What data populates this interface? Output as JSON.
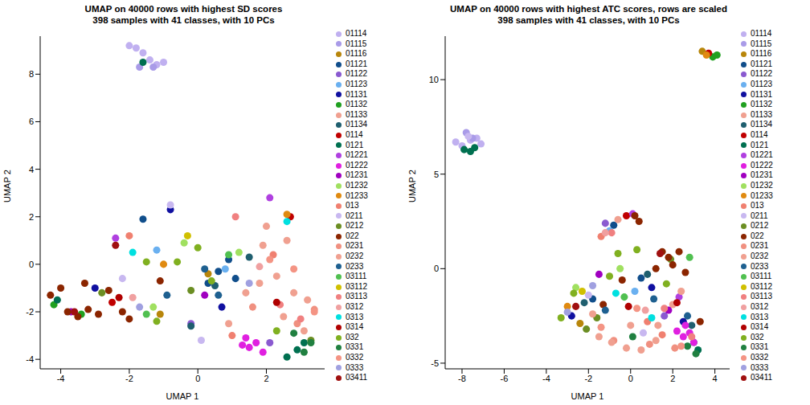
{
  "chart_data": [
    {
      "type": "scatter",
      "title": "UMAP on 40000 rows with highest SD scores",
      "subtitle": "398 samples with 41 classes, with 10 PCs",
      "x_label": "UMAP 1",
      "y_label": "UMAP 2",
      "xlim": [
        -4.6,
        3.7
      ],
      "ylim": [
        -4.4,
        9.6
      ],
      "xticks": [
        -4,
        -2,
        0,
        2
      ],
      "yticks": [
        -4,
        -2,
        0,
        2,
        4,
        6,
        8
      ],
      "legend": "right",
      "marker": "circle",
      "series": [
        {
          "name": "01114",
          "color": "#c0b0f0",
          "x": [
            -2.0,
            -1.8,
            -1.6,
            -1.4,
            -1.2,
            -1.0
          ],
          "y": [
            9.2,
            9.1,
            8.9,
            8.6,
            8.4,
            8.5
          ]
        },
        {
          "name": "01115",
          "color": "#a99be8",
          "x": [
            -1.7,
            -1.3
          ],
          "y": [
            8.3,
            8.3
          ]
        },
        {
          "name": "01116",
          "color": "#b8860b",
          "x": [
            0.3,
            -1.1
          ],
          "y": [
            -0.4,
            -2.1
          ]
        },
        {
          "name": "01121",
          "color": "#104e8b",
          "x": [
            0.6,
            0.9,
            1.1,
            0.3,
            -1.6
          ],
          "y": [
            -0.3,
            0.2,
            -0.6,
            -0.8,
            1.9
          ]
        },
        {
          "name": "01122",
          "color": "#8a5ad0",
          "x": [
            -0.2,
            2.1
          ],
          "y": [
            -2.5,
            -3.3
          ]
        },
        {
          "name": "01123",
          "color": "#6ab0f0",
          "x": [
            0.8,
            -1.2
          ],
          "y": [
            -0.2,
            0.6
          ]
        },
        {
          "name": "01131",
          "color": "#1010a0",
          "x": [
            -3.0,
            -0.8,
            0.7
          ],
          "y": [
            -1.0,
            2.3,
            -1.8
          ]
        },
        {
          "name": "01132",
          "color": "#20a020",
          "x": [
            -4.2,
            -3.4
          ],
          "y": [
            -1.7,
            -2.1
          ]
        },
        {
          "name": "01133",
          "color": "#f0a090",
          "x": [
            1.8,
            2.5,
            3.2
          ],
          "y": [
            -0.8,
            -2.2,
            -1.5
          ]
        },
        {
          "name": "01134",
          "color": "#1f5f6f",
          "x": [
            0.5,
            1.5,
            -0.2
          ],
          "y": [
            -0.9,
            0.3,
            -2.6
          ]
        },
        {
          "name": "0114",
          "color": "#c00000",
          "x": [
            2.7,
            -2.5
          ],
          "y": [
            2.0,
            -1.6
          ]
        },
        {
          "name": "0121",
          "color": "#007050",
          "x": [
            -1.6,
            2.6,
            2.9,
            3.1,
            -4.1
          ],
          "y": [
            8.5,
            -3.9,
            -3.6,
            -3.3,
            -1.5
          ]
        },
        {
          "name": "01221",
          "color": "#b040e0",
          "x": [
            -2.4,
            2.1
          ],
          "y": [
            1.1,
            2.8
          ]
        },
        {
          "name": "01222",
          "color": "#e020e0",
          "x": [
            1.3,
            1.5,
            1.7,
            1.9,
            1.4
          ],
          "y": [
            -3.4,
            -3.5,
            -3.3,
            -3.7,
            -3.1
          ]
        },
        {
          "name": "01231",
          "color": "#a000c0",
          "x": [
            -3.7,
            0.2
          ],
          "y": [
            -2.0,
            -1.3
          ]
        },
        {
          "name": "01232",
          "color": "#a0e060",
          "x": [
            1.2,
            -1.3,
            -0.4
          ],
          "y": [
            0.5,
            -1.8,
            0.9
          ]
        },
        {
          "name": "01233",
          "color": "#e08a10",
          "x": [
            -1.0,
            2.6
          ],
          "y": [
            0.0,
            2.1
          ]
        },
        {
          "name": "013",
          "color": "#f08070",
          "x": [
            -2.0,
            1.0,
            2.2
          ],
          "y": [
            1.2,
            -3.0,
            0.4
          ]
        },
        {
          "name": "0211",
          "color": "#c8b8f0",
          "x": [
            -0.8,
            -2.2,
            0.1
          ],
          "y": [
            2.5,
            -0.6,
            -3.2
          ]
        },
        {
          "name": "0212",
          "color": "#6b8e23",
          "x": [
            -2.8,
            -0.2,
            3.3
          ],
          "y": [
            -1.2,
            -1.1,
            -3.2
          ]
        },
        {
          "name": "022",
          "color": "#8b2500",
          "x": [
            -4.3,
            -4.0,
            -3.8,
            -3.5,
            -3.2,
            -2.9,
            -2.6,
            -2.2,
            -2.0,
            -3.3,
            -1.1
          ],
          "y": [
            -1.3,
            -1.0,
            -2.0,
            -2.2,
            -1.9,
            -2.1,
            -1.1,
            -2.0,
            -2.3,
            -0.8,
            -0.7
          ]
        },
        {
          "name": "0231",
          "color": "#f09080",
          "x": [
            2.9,
            3.4,
            1.6
          ],
          "y": [
            -2.5,
            -1.9,
            -1.8
          ]
        },
        {
          "name": "0232",
          "color": "#f0a090",
          "x": [
            1.9,
            2.3,
            2.8,
            3.1,
            1.4,
            2.0,
            2.6,
            0.9
          ],
          "y": [
            0.8,
            -0.5,
            -1.2,
            -2.8,
            -1.2,
            1.6,
            1.0,
            -2.5
          ]
        },
        {
          "name": "0233",
          "color": "#1e6090",
          "x": [
            0.2,
            0.6,
            -0.9
          ],
          "y": [
            -0.2,
            -1.3,
            -1.3
          ]
        },
        {
          "name": "03111",
          "color": "#50c050",
          "x": [
            -1.5,
            0.9
          ],
          "y": [
            -2.1,
            0.4
          ]
        },
        {
          "name": "03112",
          "color": "#d0c000",
          "x": [
            -0.3
          ],
          "y": [
            1.2
          ]
        },
        {
          "name": "03113",
          "color": "#f08080",
          "x": [
            2.4,
            3.0,
            1.1
          ],
          "y": [
            -1.7,
            -2.3,
            2.0
          ]
        },
        {
          "name": "0312",
          "color": "#f0a0a0",
          "x": [
            -1.9,
            1.8
          ],
          "y": [
            -1.4,
            -0.1
          ]
        },
        {
          "name": "0313",
          "color": "#00e0e0",
          "x": [
            -1.9,
            2.6
          ],
          "y": [
            0.5,
            1.8
          ]
        },
        {
          "name": "0314",
          "color": "#b00000",
          "x": [
            -2.3,
            2.3
          ],
          "y": [
            -1.4,
            -1.6
          ]
        },
        {
          "name": "032",
          "color": "#80b020",
          "x": [
            -0.6,
            0.0,
            0.4,
            -1.2,
            2.3,
            -1.5
          ],
          "y": [
            0.1,
            0.7,
            -0.7,
            -2.4,
            -2.8,
            0.1
          ]
        },
        {
          "name": "0331",
          "color": "#208040",
          "x": [
            3.1,
            3.3,
            2.8
          ],
          "y": [
            -3.7,
            -3.3,
            -2.9
          ]
        },
        {
          "name": "0332",
          "color": "#f49484",
          "x": [
            2.1,
            2.8,
            3.4
          ],
          "y": [
            0.2,
            -0.2,
            -2.0
          ]
        },
        {
          "name": "0333",
          "color": "#a0a0e0",
          "x": [
            -1.7,
            1.5
          ],
          "y": [
            -1.8,
            -0.8
          ]
        },
        {
          "name": "03411",
          "color": "#a01010",
          "x": [
            -2.4,
            -3.6
          ],
          "y": [
            0.8,
            -2.0
          ]
        }
      ]
    },
    {
      "type": "scatter",
      "title": "UMAP on 40000 rows with highest ATC scores, rows are scaled",
      "subtitle": "398 samples with 41 classes, with 10 PCs",
      "x_label": "UMAP 1",
      "y_label": "UMAP 2",
      "xlim": [
        -8.8,
        4.7
      ],
      "ylim": [
        -5.3,
        12.3
      ],
      "xticks": [
        -8,
        -6,
        -4,
        -2,
        0,
        2,
        4
      ],
      "yticks": [
        -5,
        0,
        5,
        10
      ],
      "legend": "right",
      "marker": "circle",
      "series": [
        {
          "name": "01114",
          "color": "#c0b0f0",
          "x": [
            -8.3,
            -8.0,
            -7.6,
            -7.3,
            -7.1
          ],
          "y": [
            6.7,
            6.5,
            6.8,
            6.9,
            6.6
          ]
        },
        {
          "name": "01115",
          "color": "#a99be8",
          "x": [
            -7.8,
            -7.5
          ],
          "y": [
            7.2,
            6.9
          ]
        },
        {
          "name": "01116",
          "color": "#b8860b",
          "x": [
            3.4,
            -2.4
          ],
          "y": [
            11.5,
            -2.9
          ]
        },
        {
          "name": "01121",
          "color": "#104e8b",
          "x": [
            -0.8,
            -1.8,
            0.5
          ],
          "y": [
            2.3,
            -1.6,
            -0.5
          ]
        },
        {
          "name": "01122",
          "color": "#8a5ad0",
          "x": [
            -1.2,
            1.6
          ],
          "y": [
            2.4,
            -2.5
          ]
        },
        {
          "name": "01123",
          "color": "#6ab0f0",
          "x": [
            -1.0,
            0.2
          ],
          "y": [
            2.0,
            -1.2
          ]
        },
        {
          "name": "01131",
          "color": "#1010a0",
          "x": [
            -2.8,
            1.0,
            2.5
          ],
          "y": [
            -2.5,
            -1.0,
            -2.8
          ]
        },
        {
          "name": "01132",
          "color": "#20a020",
          "x": [
            3.9,
            4.1
          ],
          "y": [
            11.2,
            11.3
          ]
        },
        {
          "name": "01133",
          "color": "#f0a090",
          "x": [
            -0.6,
            2.0,
            1.2
          ],
          "y": [
            2.6,
            -1.9,
            -3.8
          ]
        },
        {
          "name": "01134",
          "color": "#1f5f6f",
          "x": [
            -2.2,
            2.9,
            0.8
          ],
          "y": [
            -1.8,
            -3.0,
            -0.3
          ]
        },
        {
          "name": "0114",
          "color": "#c00000",
          "x": [
            3.7,
            -0.2
          ],
          "y": [
            11.4,
            2.8
          ]
        },
        {
          "name": "0121",
          "color": "#007050",
          "x": [
            -7.9,
            -7.6,
            -7.4,
            3.2,
            3.0
          ],
          "y": [
            6.3,
            6.2,
            6.4,
            -4.3,
            -3.9
          ]
        },
        {
          "name": "01221",
          "color": "#b040e0",
          "x": [
            0.1,
            2.3
          ],
          "y": [
            2.9,
            -1.5
          ]
        },
        {
          "name": "01222",
          "color": "#e020e0",
          "x": [
            2.2,
            2.5,
            2.8,
            3.0,
            2.6
          ],
          "y": [
            -3.3,
            -3.6,
            -3.4,
            -3.9,
            -3.0
          ]
        },
        {
          "name": "01231",
          "color": "#a000c0",
          "x": [
            -1.5,
            1.8
          ],
          "y": [
            -0.3,
            -2.2
          ]
        },
        {
          "name": "01232",
          "color": "#a0e060",
          "x": [
            -2.6,
            -0.5
          ],
          "y": [
            -1.0,
            0.0
          ]
        },
        {
          "name": "01233",
          "color": "#e08a10",
          "x": [
            3.6,
            -3.0
          ],
          "y": [
            11.3,
            -2.0
          ]
        },
        {
          "name": "013",
          "color": "#f08070",
          "x": [
            -1.4,
            0.8,
            1.5
          ],
          "y": [
            1.7,
            -2.8,
            -3.5
          ]
        },
        {
          "name": "0211",
          "color": "#c8b8f0",
          "x": [
            -7.7,
            -2.0,
            0.6
          ],
          "y": [
            7.0,
            -1.4,
            -3.4
          ]
        },
        {
          "name": "0212",
          "color": "#6b8e23",
          "x": [
            -1.6,
            1.9,
            -2.1
          ],
          "y": [
            -2.6,
            0.5,
            -3.2
          ]
        },
        {
          "name": "022",
          "color": "#8b2500",
          "x": [
            0.2,
            0.4,
            1.5,
            1.8,
            2.0,
            2.3,
            2.6,
            -0.4,
            1.2,
            -1.3,
            3.3
          ],
          "y": [
            2.8,
            2.5,
            0.9,
            0.6,
            0.2,
            0.9,
            -0.2,
            -0.6,
            0.0,
            -1.9,
            -2.8
          ]
        },
        {
          "name": "0231",
          "color": "#f09080",
          "x": [
            -0.8,
            0.9,
            2.1
          ],
          "y": [
            -3.8,
            -4.0,
            -4.2
          ]
        },
        {
          "name": "0232",
          "color": "#f0a090",
          "x": [
            -1.5,
            -0.9,
            -0.2,
            0.5,
            1.3,
            2.4,
            -1.8,
            0.0
          ],
          "y": [
            -3.6,
            -3.9,
            -4.2,
            -4.3,
            -3.0,
            -1.2,
            -2.4,
            -3.0
          ]
        },
        {
          "name": "0233",
          "color": "#1e6090",
          "x": [
            -1.2,
            1.1,
            2.7
          ],
          "y": [
            -2.2,
            -1.6,
            -2.5
          ]
        },
        {
          "name": "03111",
          "color": "#50c050",
          "x": [
            -0.3,
            2.8
          ],
          "y": [
            -1.5,
            0.6
          ]
        },
        {
          "name": "03112",
          "color": "#d0c000",
          "x": [
            -2.3
          ],
          "y": [
            -1.2
          ]
        },
        {
          "name": "03113",
          "color": "#f08080",
          "x": [
            -0.9,
            1.6,
            2.9
          ],
          "y": [
            1.9,
            -2.1,
            -3.6
          ]
        },
        {
          "name": "0312",
          "color": "#f0a0a0",
          "x": [
            -1.2,
            0.7
          ],
          "y": [
            1.9,
            -2.2
          ]
        },
        {
          "name": "0313",
          "color": "#00e0e0",
          "x": [
            -0.7,
            1.0
          ],
          "y": [
            -1.3,
            -2.6
          ]
        },
        {
          "name": "0314",
          "color": "#b00000",
          "x": [
            -0.1,
            2.2
          ],
          "y": [
            -2.0,
            -1.8
          ]
        },
        {
          "name": "032",
          "color": "#80b020",
          "x": [
            -3.3,
            -2.7,
            -0.6,
            1.7,
            -1.0,
            0.3
          ],
          "y": [
            -2.6,
            -1.3,
            0.8,
            -0.8,
            -0.4,
            1.0
          ]
        },
        {
          "name": "0331",
          "color": "#208040",
          "x": [
            3.1,
            2.7,
            0.1
          ],
          "y": [
            -4.5,
            -4.1,
            -3.6
          ]
        },
        {
          "name": "0332",
          "color": "#f49484",
          "x": [
            -1.4,
            0.3,
            2.4
          ],
          "y": [
            -3.1,
            -2.1,
            -4.1
          ]
        },
        {
          "name": "0333",
          "color": "#a0a0e0",
          "x": [
            -3.0,
            -1.8
          ],
          "y": [
            -2.3,
            -0.9
          ]
        },
        {
          "name": "03411",
          "color": "#a01010",
          "x": [
            -2.6,
            1.4
          ],
          "y": [
            -2.0,
            0.8
          ]
        }
      ]
    }
  ]
}
